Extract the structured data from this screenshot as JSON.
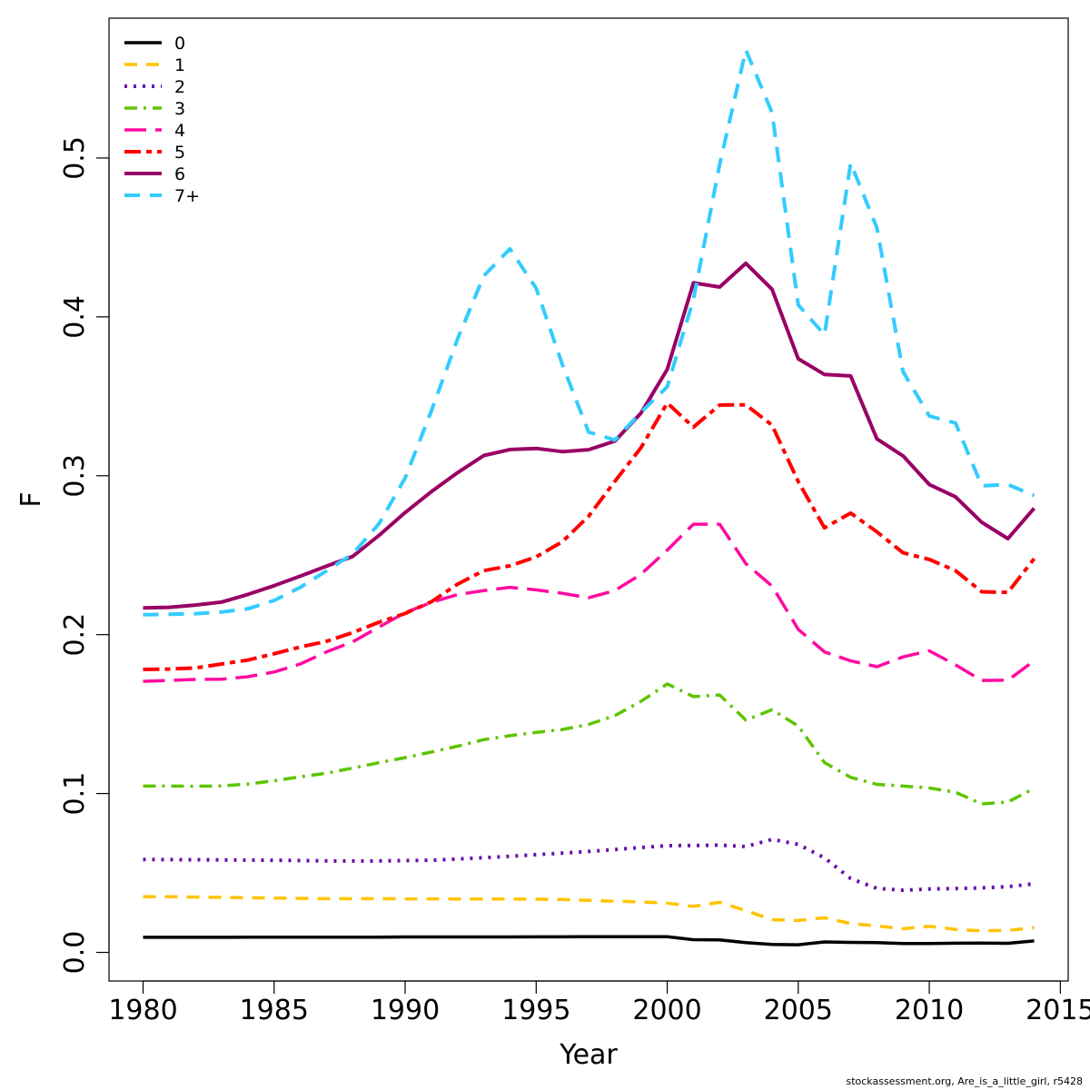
{
  "chart_data": {
    "type": "line",
    "xlabel": "Year",
    "ylabel": "F",
    "xlim": [
      1978.7,
      2015.3
    ],
    "ylim": [
      -0.018,
      0.588
    ],
    "x_ticks": [
      1980,
      1985,
      1990,
      1995,
      2000,
      2005,
      2010,
      2015
    ],
    "y_ticks": [
      0.0,
      0.1,
      0.2,
      0.3,
      0.4,
      0.5
    ],
    "y_tick_labels": [
      "0.0",
      "0.1",
      "0.2",
      "0.3",
      "0.4",
      "0.5"
    ],
    "grid": false,
    "legend_position": "top-left",
    "x": [
      1980,
      1981,
      1982,
      1983,
      1984,
      1985,
      1986,
      1987,
      1988,
      1989,
      1990,
      1991,
      1992,
      1993,
      1994,
      1995,
      1996,
      1997,
      1998,
      1999,
      2000,
      2001,
      2002,
      2003,
      2004,
      2005,
      2006,
      2007,
      2008,
      2009,
      2010,
      2011,
      2012,
      2013,
      2014
    ],
    "series": [
      {
        "name": "0",
        "color": "#000000",
        "dash": "none",
        "width": 3.5,
        "values": [
          0.0095,
          0.0095,
          0.0095,
          0.0095,
          0.0096,
          0.0096,
          0.0096,
          0.0096,
          0.0096,
          0.0096,
          0.0097,
          0.0097,
          0.0097,
          0.0097,
          0.0097,
          0.0098,
          0.0098,
          0.0099,
          0.0099,
          0.0099,
          0.0099,
          0.008,
          0.0079,
          0.0062,
          0.005,
          0.0048,
          0.0066,
          0.0063,
          0.0062,
          0.0056,
          0.0056,
          0.0058,
          0.0059,
          0.0057,
          0.0072
        ]
      },
      {
        "name": "1",
        "color": "#FFC300",
        "dash": "14,10",
        "width": 3.5,
        "values": [
          0.035,
          0.035,
          0.0348,
          0.0346,
          0.0344,
          0.0342,
          0.034,
          0.0338,
          0.0338,
          0.0338,
          0.0337,
          0.0337,
          0.0336,
          0.0336,
          0.0336,
          0.0335,
          0.0333,
          0.0327,
          0.0322,
          0.0318,
          0.031,
          0.029,
          0.0315,
          0.0263,
          0.0206,
          0.0201,
          0.0218,
          0.0182,
          0.0167,
          0.0149,
          0.0165,
          0.0145,
          0.0136,
          0.0139,
          0.0155
        ]
      },
      {
        "name": "2",
        "color": "#6A0DAD",
        "dash": "3,7",
        "width": 4,
        "values": [
          0.0585,
          0.0584,
          0.0583,
          0.0582,
          0.0581,
          0.058,
          0.0578,
          0.0576,
          0.0575,
          0.0576,
          0.0578,
          0.058,
          0.0588,
          0.0596,
          0.0605,
          0.0615,
          0.0625,
          0.0635,
          0.0647,
          0.066,
          0.0672,
          0.0673,
          0.0675,
          0.0666,
          0.0711,
          0.068,
          0.0595,
          0.0465,
          0.0403,
          0.0391,
          0.0399,
          0.0402,
          0.0406,
          0.0414,
          0.0432
        ]
      },
      {
        "name": "3",
        "color": "#5DC400",
        "dash": "14,7,3,7",
        "width": 3.5,
        "values": [
          0.1047,
          0.1047,
          0.1046,
          0.1048,
          0.106,
          0.108,
          0.1105,
          0.1128,
          0.116,
          0.1194,
          0.1226,
          0.1261,
          0.1298,
          0.1339,
          0.1364,
          0.1385,
          0.1403,
          0.1435,
          0.149,
          0.158,
          0.169,
          0.161,
          0.162,
          0.1462,
          0.1527,
          0.1425,
          0.1195,
          0.1102,
          0.1058,
          0.1047,
          0.1035,
          0.1008,
          0.0935,
          0.0947,
          0.1032
        ]
      },
      {
        "name": "4",
        "color": "#FF0AA0",
        "dash": "24,10",
        "width": 3.5,
        "values": [
          0.1706,
          0.1712,
          0.1718,
          0.172,
          0.1735,
          0.1765,
          0.1815,
          0.1892,
          0.1955,
          0.2048,
          0.2138,
          0.2203,
          0.2252,
          0.2277,
          0.2298,
          0.2282,
          0.226,
          0.2232,
          0.2277,
          0.238,
          0.2532,
          0.2695,
          0.2695,
          0.2447,
          0.2306,
          0.2033,
          0.1891,
          0.1835,
          0.1798,
          0.186,
          0.1898,
          0.181,
          0.1712,
          0.1713,
          0.1835
        ]
      },
      {
        "name": "5",
        "color": "#FF0000",
        "dash": "18,6,6,6",
        "width": 4,
        "values": [
          0.1781,
          0.1783,
          0.179,
          0.1815,
          0.184,
          0.188,
          0.1922,
          0.1958,
          0.2013,
          0.2078,
          0.2133,
          0.2207,
          0.2318,
          0.2403,
          0.2433,
          0.2489,
          0.2585,
          0.2745,
          0.2965,
          0.3177,
          0.3458,
          0.3306,
          0.3445,
          0.3446,
          0.3318,
          0.2963,
          0.2672,
          0.2765,
          0.2647,
          0.2515,
          0.2473,
          0.2403,
          0.227,
          0.2266,
          0.2478
        ]
      },
      {
        "name": "6",
        "color": "#990066",
        "dash": "none",
        "width": 4,
        "values": [
          0.2168,
          0.2172,
          0.2186,
          0.2205,
          0.2253,
          0.2308,
          0.2368,
          0.2431,
          0.2492,
          0.2624,
          0.2768,
          0.29,
          0.3019,
          0.3127,
          0.3165,
          0.3172,
          0.3152,
          0.3164,
          0.3218,
          0.3395,
          0.367,
          0.4214,
          0.4188,
          0.4337,
          0.4173,
          0.3736,
          0.3637,
          0.3628,
          0.3232,
          0.3125,
          0.2945,
          0.2868,
          0.2707,
          0.2604,
          0.2795
        ]
      },
      {
        "name": "7+",
        "color": "#33CCFF",
        "dash": "17,11",
        "width": 4,
        "values": [
          0.2125,
          0.2128,
          0.2132,
          0.2142,
          0.2163,
          0.2215,
          0.2298,
          0.2402,
          0.2508,
          0.2698,
          0.2985,
          0.3408,
          0.386,
          0.4258,
          0.4428,
          0.418,
          0.37,
          0.3275,
          0.3225,
          0.34,
          0.356,
          0.411,
          0.496,
          0.568,
          0.5285,
          0.4075,
          0.3887,
          0.4968,
          0.456,
          0.3655,
          0.3376,
          0.3332,
          0.2937,
          0.2945,
          0.2875
        ]
      }
    ]
  },
  "footer": "stockassessment.org, Are_is_a_little_girl, r5428"
}
